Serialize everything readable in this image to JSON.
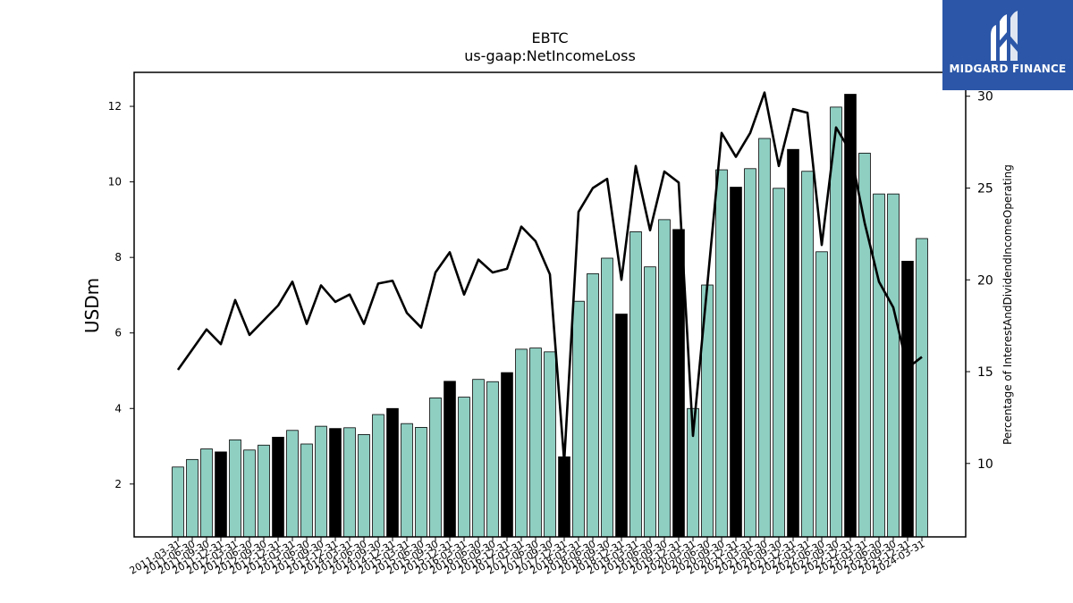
{
  "brand": {
    "name": "MIDGARD FINANCE",
    "logo_color": "#2c57a8",
    "icon": "midgard-logo-icon"
  },
  "chart_data": {
    "type": "bar",
    "title": "EBTC",
    "subtitle": "us-gaap:NetIncomeLoss",
    "ylabel": "USDm",
    "y2label": "Percentage of InterestAndDividendIncomeOperating",
    "ylim": [
      0.6,
      12.9
    ],
    "y2lim": [
      6.0,
      31.3
    ],
    "yticks": [
      2,
      4,
      6,
      8,
      10,
      12
    ],
    "y2ticks": [
      10,
      15,
      20,
      25,
      30
    ],
    "bar_color": "#8ecfc2",
    "highlight_color": "#000000",
    "line_color": "#000000",
    "categories": [
      "2011-03-31",
      "2011-06-30",
      "2011-09-30",
      "2011-12-31",
      "2012-03-31",
      "2012-06-30",
      "2012-09-30",
      "2012-12-31",
      "2013-03-31",
      "2013-06-30",
      "2013-09-30",
      "2013-12-31",
      "2014-03-31",
      "2014-06-30",
      "2014-09-30",
      "2014-12-31",
      "2015-03-31",
      "2015-06-30",
      "2015-09-30",
      "2015-12-31",
      "2016-03-31",
      "2016-06-30",
      "2016-09-30",
      "2016-12-31",
      "2017-03-31",
      "2017-06-30",
      "2017-09-30",
      "2017-12-31",
      "2018-03-31",
      "2018-06-30",
      "2018-09-30",
      "2018-12-31",
      "2019-03-31",
      "2019-06-30",
      "2019-09-30",
      "2019-12-31",
      "2020-03-31",
      "2020-06-30",
      "2020-09-30",
      "2020-12-31",
      "2021-03-31",
      "2021-06-30",
      "2021-09-30",
      "2021-12-31",
      "2022-03-31",
      "2022-06-30",
      "2022-09-30",
      "2022-12-31",
      "2023-03-31",
      "2023-06-30",
      "2023-09-30",
      "2023-12-31",
      "2024-03-31"
    ],
    "series": [
      {
        "values": [
          2.45,
          2.65,
          2.93,
          2.85,
          3.17,
          2.9,
          3.03,
          3.24,
          3.42,
          3.06,
          3.53,
          3.47,
          3.49,
          3.31,
          3.84,
          4.0,
          3.6,
          3.5,
          4.28,
          4.72,
          4.3,
          4.77,
          4.71,
          4.95,
          5.57,
          5.6,
          5.5,
          2.72,
          6.84,
          7.57,
          7.98,
          6.5,
          8.68,
          7.75,
          9.0,
          8.74,
          4.0,
          7.27,
          10.32,
          9.86,
          10.35,
          11.15,
          9.83,
          10.86,
          10.28,
          8.15,
          11.98,
          12.32,
          10.76,
          9.68,
          9.68,
          7.9,
          8.5
        ]
      },
      {
        "values": [
          15.1,
          16.2,
          17.3,
          16.5,
          18.9,
          17.0,
          17.8,
          18.6,
          19.9,
          17.6,
          19.7,
          18.8,
          19.2,
          17.6,
          19.8,
          19.95,
          18.2,
          17.4,
          20.4,
          21.5,
          19.2,
          21.1,
          20.4,
          20.6,
          22.9,
          22.1,
          20.3,
          10.1,
          23.7,
          25.0,
          25.5,
          20.0,
          26.2,
          22.7,
          25.9,
          25.3,
          11.5,
          19.7,
          28.0,
          26.7,
          28.0,
          30.2,
          26.2,
          29.3,
          29.1,
          21.9,
          28.3,
          27.0,
          23.1,
          19.9,
          18.5,
          15.2,
          15.8
        ]
      }
    ],
    "highlight_indices": [
      3,
      7,
      11,
      15,
      19,
      23,
      27,
      31,
      35,
      39,
      43,
      47,
      51
    ]
  }
}
